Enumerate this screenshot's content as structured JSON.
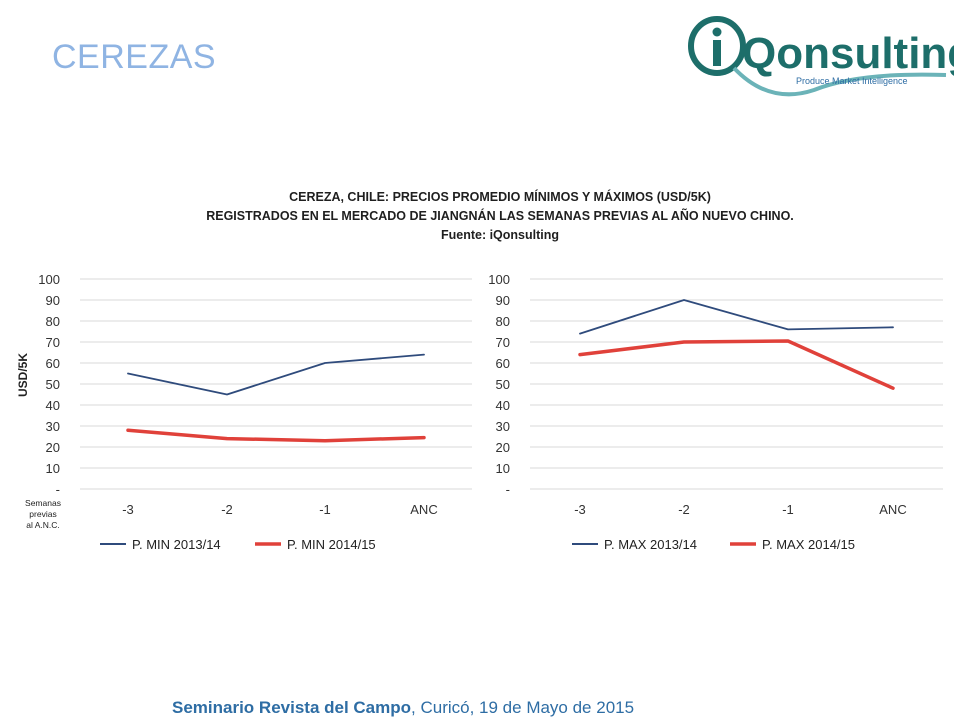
{
  "slide": {
    "title": "CEREZAS",
    "footer_bold": "Seminario Revista del Campo",
    "footer_rest": ", Curicó, 19 de Mayo de 2015"
  },
  "logo": {
    "brand": "Qonsulting",
    "tagline": "Produce Market Intelligence",
    "colors": {
      "teal": "#1d6e6a",
      "aqua": "#6bb3b8"
    }
  },
  "chart_header": {
    "line1": "CEREZA, CHILE:  PRECIOS PROMEDIO MÍNIMOS Y MÁXIMOS (USD/5K)",
    "line2": "REGISTRADOS EN EL MERCADO DE JIANGNÁN LAS SEMANAS PREVIAS AL AÑO NUEVO CHINO.",
    "line3": "Fuente: iQonsulting"
  },
  "chart_data": [
    {
      "type": "line",
      "categories": [
        "-3",
        "-2",
        "-1",
        "ANC"
      ],
      "ylim": [
        0,
        100
      ],
      "yticks": [
        "-",
        "10",
        "20",
        "30",
        "40",
        "50",
        "60",
        "70",
        "80",
        "90",
        "100"
      ],
      "ylabel": "USD/5K",
      "xlabel": "Semanas previas al A.N.C.",
      "grid": true,
      "legend": "bottom",
      "series": [
        {
          "name": "P. MIN 2013/14",
          "values": [
            55,
            45,
            60,
            64
          ],
          "color": "#2f4b7c"
        },
        {
          "name": "P. MIN 2014/15",
          "values": [
            28,
            24,
            23,
            24.5
          ],
          "color": "#e0413a"
        }
      ]
    },
    {
      "type": "line",
      "categories": [
        "-3",
        "-2",
        "-1",
        "ANC"
      ],
      "ylim": [
        0,
        100
      ],
      "yticks": [
        "-",
        "10",
        "20",
        "30",
        "40",
        "50",
        "60",
        "70",
        "80",
        "90",
        "100"
      ],
      "grid": true,
      "legend": "bottom",
      "series": [
        {
          "name": "P. MAX 2013/14",
          "values": [
            74,
            90,
            76,
            77
          ],
          "color": "#2f4b7c"
        },
        {
          "name": "P. MAX 2014/15",
          "values": [
            64,
            70,
            70.5,
            48
          ],
          "color": "#e0413a"
        }
      ]
    }
  ]
}
